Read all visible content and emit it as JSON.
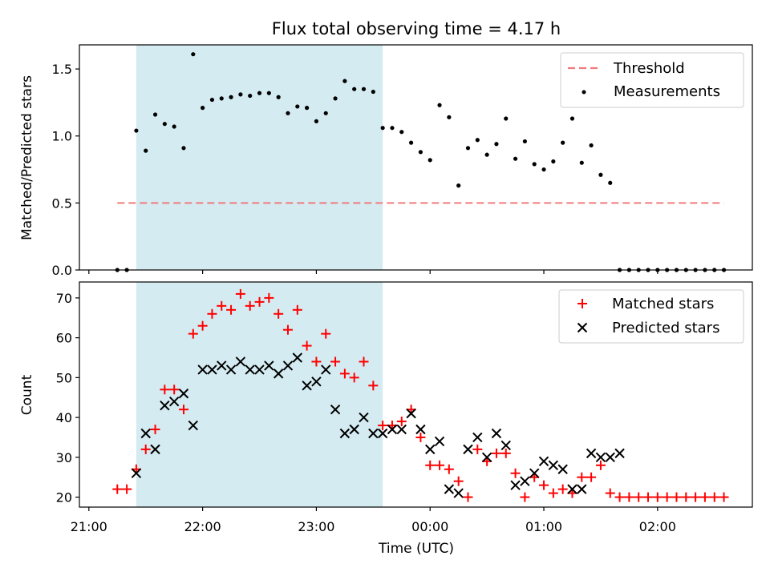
{
  "title": "Flux total observing time = 4.17 h",
  "chart_data": [
    {
      "type": "scatter",
      "panel": "top",
      "ylabel": "Matched/Predicted stars",
      "ylim": [
        0,
        1.68
      ],
      "yticks": [
        0.0,
        0.5,
        1.0,
        1.5
      ],
      "ytick_labels": [
        "0.0",
        "0.5",
        "1.0",
        "1.5"
      ],
      "grid": false,
      "legend_position": "top-right",
      "shaded_interval": [
        "21:25",
        "23:35"
      ],
      "shade_color": "#d4ebf1",
      "threshold": {
        "name": "Threshold",
        "value": 0.5,
        "x_start": "21:15",
        "x_end": "02:35",
        "color": "#f07b7b"
      },
      "series": [
        {
          "name": "Measurements",
          "color": "#000000",
          "marker": "dot",
          "points": [
            [
              "21:15",
              0
            ],
            [
              "21:20",
              0
            ],
            [
              "21:25",
              1.04
            ],
            [
              "21:30",
              0.89
            ],
            [
              "21:35",
              1.16
            ],
            [
              "21:40",
              1.09
            ],
            [
              "21:45",
              1.07
            ],
            [
              "21:50",
              0.91
            ],
            [
              "21:55",
              1.61
            ],
            [
              "22:00",
              1.21
            ],
            [
              "22:05",
              1.27
            ],
            [
              "22:10",
              1.28
            ],
            [
              "22:15",
              1.29
            ],
            [
              "22:20",
              1.31
            ],
            [
              "22:25",
              1.3
            ],
            [
              "22:30",
              1.32
            ],
            [
              "22:35",
              1.32
            ],
            [
              "22:40",
              1.29
            ],
            [
              "22:45",
              1.17
            ],
            [
              "22:50",
              1.22
            ],
            [
              "22:55",
              1.21
            ],
            [
              "23:00",
              1.11
            ],
            [
              "23:05",
              1.17
            ],
            [
              "23:10",
              1.28
            ],
            [
              "23:15",
              1.41
            ],
            [
              "23:20",
              1.35
            ],
            [
              "23:25",
              1.35
            ],
            [
              "23:30",
              1.33
            ],
            [
              "23:35",
              1.06
            ],
            [
              "23:40",
              1.06
            ],
            [
              "23:45",
              1.03
            ],
            [
              "23:50",
              0.95
            ],
            [
              "23:55",
              0.88
            ],
            [
              "00:00",
              0.82
            ],
            [
              "00:05",
              1.23
            ],
            [
              "00:10",
              1.14
            ],
            [
              "00:15",
              0.63
            ],
            [
              "00:20",
              0.91
            ],
            [
              "00:25",
              0.97
            ],
            [
              "00:30",
              0.86
            ],
            [
              "00:35",
              0.94
            ],
            [
              "00:40",
              1.13
            ],
            [
              "00:45",
              0.83
            ],
            [
              "00:50",
              0.96
            ],
            [
              "00:55",
              0.79
            ],
            [
              "01:00",
              0.75
            ],
            [
              "01:05",
              0.81
            ],
            [
              "01:10",
              0.95
            ],
            [
              "01:15",
              1.13
            ],
            [
              "01:20",
              0.8
            ],
            [
              "01:25",
              0.93
            ],
            [
              "01:30",
              0.71
            ],
            [
              "01:35",
              0.65
            ],
            [
              "01:40",
              0
            ],
            [
              "01:45",
              0
            ],
            [
              "01:50",
              0
            ],
            [
              "01:55",
              0
            ],
            [
              "02:00",
              0
            ],
            [
              "02:05",
              0
            ],
            [
              "02:10",
              0
            ],
            [
              "02:15",
              0
            ],
            [
              "02:20",
              0
            ],
            [
              "02:25",
              0
            ],
            [
              "02:30",
              0
            ],
            [
              "02:35",
              0
            ]
          ]
        }
      ]
    },
    {
      "type": "scatter",
      "panel": "bottom",
      "xlabel": "Time (UTC)",
      "ylabel": "Count",
      "ylim": [
        17.5,
        74
      ],
      "yticks": [
        20,
        30,
        40,
        50,
        60,
        70
      ],
      "ytick_labels": [
        "20",
        "30",
        "40",
        "50",
        "60",
        "70"
      ],
      "xlim": [
        "20:55",
        "02:50"
      ],
      "xticks": [
        "21:00",
        "22:00",
        "23:00",
        "00:00",
        "01:00",
        "02:00"
      ],
      "xtick_labels": [
        "21:00",
        "22:00",
        "23:00",
        "00:00",
        "01:00",
        "02:00"
      ],
      "grid": false,
      "legend_position": "top-right",
      "shaded_interval": [
        "21:25",
        "23:35"
      ],
      "series": [
        {
          "name": "Matched stars",
          "color": "#ff0000",
          "marker": "plus",
          "points": [
            [
              "21:15",
              22
            ],
            [
              "21:20",
              22
            ],
            [
              "21:25",
              27
            ],
            [
              "21:30",
              32
            ],
            [
              "21:35",
              37
            ],
            [
              "21:40",
              47
            ],
            [
              "21:45",
              47
            ],
            [
              "21:50",
              42
            ],
            [
              "21:55",
              61
            ],
            [
              "22:00",
              63
            ],
            [
              "22:05",
              66
            ],
            [
              "22:10",
              68
            ],
            [
              "22:15",
              67
            ],
            [
              "22:20",
              71
            ],
            [
              "22:25",
              68
            ],
            [
              "22:30",
              69
            ],
            [
              "22:35",
              70
            ],
            [
              "22:40",
              66
            ],
            [
              "22:45",
              62
            ],
            [
              "22:50",
              67
            ],
            [
              "22:55",
              58
            ],
            [
              "23:00",
              54
            ],
            [
              "23:05",
              61
            ],
            [
              "23:10",
              54
            ],
            [
              "23:15",
              51
            ],
            [
              "23:20",
              50
            ],
            [
              "23:25",
              54
            ],
            [
              "23:30",
              48
            ],
            [
              "23:35",
              38
            ],
            [
              "23:40",
              38
            ],
            [
              "23:45",
              39
            ],
            [
              "23:50",
              42
            ],
            [
              "23:55",
              35
            ],
            [
              "00:00",
              28
            ],
            [
              "00:05",
              28
            ],
            [
              "00:10",
              27
            ],
            [
              "00:15",
              24
            ],
            [
              "00:20",
              20
            ],
            [
              "00:25",
              32
            ],
            [
              "00:30",
              29
            ],
            [
              "00:35",
              31
            ],
            [
              "00:40",
              31
            ],
            [
              "00:45",
              26
            ],
            [
              "00:50",
              20
            ],
            [
              "00:55",
              25
            ],
            [
              "01:00",
              23
            ],
            [
              "01:05",
              21
            ],
            [
              "01:10",
              22
            ],
            [
              "01:15",
              21
            ],
            [
              "01:20",
              25
            ],
            [
              "01:25",
              25
            ],
            [
              "01:30",
              28
            ],
            [
              "01:35",
              21
            ],
            [
              "01:40",
              20
            ],
            [
              "01:45",
              20
            ],
            [
              "01:50",
              20
            ],
            [
              "01:55",
              20
            ],
            [
              "02:00",
              20
            ],
            [
              "02:05",
              20
            ],
            [
              "02:10",
              20
            ],
            [
              "02:15",
              20
            ],
            [
              "02:20",
              20
            ],
            [
              "02:25",
              20
            ],
            [
              "02:30",
              20
            ],
            [
              "02:35",
              20
            ]
          ]
        },
        {
          "name": "Predicted stars",
          "color": "#000000",
          "marker": "x",
          "points": [
            [
              "21:25",
              26
            ],
            [
              "21:30",
              36
            ],
            [
              "21:35",
              32
            ],
            [
              "21:40",
              43
            ],
            [
              "21:45",
              44
            ],
            [
              "21:50",
              46
            ],
            [
              "21:55",
              38
            ],
            [
              "22:00",
              52
            ],
            [
              "22:05",
              52
            ],
            [
              "22:10",
              53
            ],
            [
              "22:15",
              52
            ],
            [
              "22:20",
              54
            ],
            [
              "22:25",
              52
            ],
            [
              "22:30",
              52
            ],
            [
              "22:35",
              53
            ],
            [
              "22:40",
              51
            ],
            [
              "22:45",
              53
            ],
            [
              "22:50",
              55
            ],
            [
              "22:55",
              48
            ],
            [
              "23:00",
              49
            ],
            [
              "23:05",
              52
            ],
            [
              "23:10",
              42
            ],
            [
              "23:15",
              36
            ],
            [
              "23:20",
              37
            ],
            [
              "23:25",
              40
            ],
            [
              "23:30",
              36
            ],
            [
              "23:35",
              36
            ],
            [
              "23:40",
              37
            ],
            [
              "23:45",
              37
            ],
            [
              "23:50",
              41
            ],
            [
              "23:55",
              37
            ],
            [
              "00:00",
              32
            ],
            [
              "00:05",
              34
            ],
            [
              "00:10",
              22
            ],
            [
              "00:15",
              21
            ],
            [
              "00:20",
              32
            ],
            [
              "00:25",
              35
            ],
            [
              "00:30",
              30
            ],
            [
              "00:35",
              36
            ],
            [
              "00:40",
              33
            ],
            [
              "00:45",
              23
            ],
            [
              "00:50",
              24
            ],
            [
              "00:55",
              26
            ],
            [
              "01:00",
              29
            ],
            [
              "01:05",
              28
            ],
            [
              "01:10",
              27
            ],
            [
              "01:15",
              22
            ],
            [
              "01:20",
              22
            ],
            [
              "01:25",
              31
            ],
            [
              "01:30",
              30
            ],
            [
              "01:35",
              30
            ],
            [
              "01:40",
              31
            ]
          ]
        }
      ]
    }
  ]
}
